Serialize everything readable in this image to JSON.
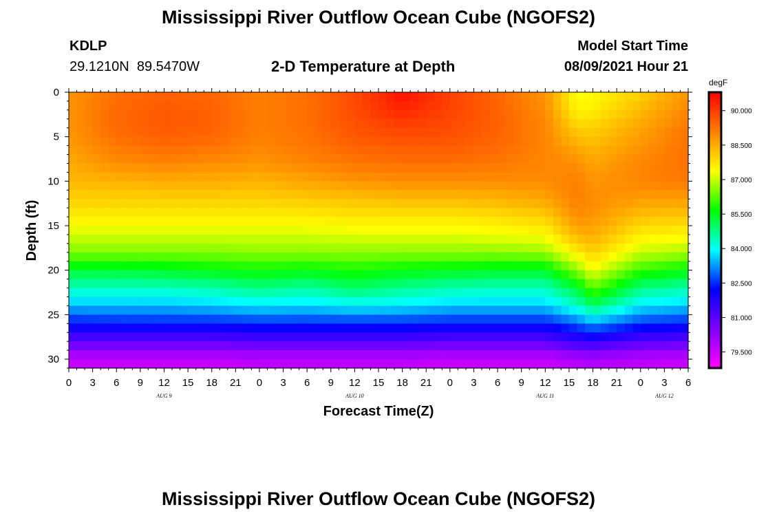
{
  "header": {
    "title": "Mississippi River Outflow Ocean Cube (NGOFS2)",
    "station_id": "KDLP",
    "station_coords": "29.1210N  89.5470W",
    "model_start_label": "Model Start Time",
    "model_start_value": "08/09/2021 Hour 21"
  },
  "footer": {
    "title": "Mississippi River Outflow Ocean Cube (NGOFS2)"
  },
  "chart_data": {
    "type": "heatmap",
    "title": "2-D Temperature at Depth",
    "xlabel": "Forecast Time(Z)",
    "ylabel": "Depth (ft)",
    "units": "degF",
    "x_range_hours": [
      0,
      78
    ],
    "x_tick_labels": [
      "0",
      "3",
      "6",
      "9",
      "12",
      "15",
      "18",
      "21",
      "0",
      "3",
      "6",
      "9",
      "12",
      "15",
      "18",
      "21",
      "0",
      "3",
      "6",
      "9",
      "12",
      "15",
      "18",
      "21",
      "0",
      "3",
      "6"
    ],
    "date_labels": [
      {
        "label": "AUG 9",
        "hour": 12
      },
      {
        "label": "AUG 10",
        "hour": 36
      },
      {
        "label": "AUG 11",
        "hour": 60
      },
      {
        "label": "AUG 12",
        "hour": 75
      }
    ],
    "y_range_ft": [
      0,
      31
    ],
    "y_ticks": [
      0,
      5,
      10,
      15,
      20,
      25,
      30
    ],
    "colorbar": {
      "range": [
        78.8,
        90.8
      ],
      "tick_values": [
        90.0,
        88.5,
        87.0,
        85.5,
        84.0,
        82.5,
        81.0,
        79.5
      ],
      "tick_labels": [
        "90.000",
        "88.500",
        "87.000",
        "85.500",
        "84.000",
        "82.500",
        "81.000",
        "79.500"
      ],
      "colors_low_to_high": [
        "#ff00ff",
        "#8000ff",
        "#0000ff",
        "#00ffff",
        "#00ff00",
        "#ffff00",
        "#ff8000",
        "#ff0000"
      ]
    },
    "depths_ft": [
      0,
      2,
      4,
      6,
      8,
      10,
      12,
      14,
      16,
      18,
      20,
      22,
      24,
      26,
      28,
      30
    ],
    "times_h": [
      0,
      6,
      12,
      18,
      24,
      30,
      36,
      42,
      48,
      54,
      60,
      64,
      66,
      72,
      78
    ],
    "temperature_degF": [
      [
        88.8,
        89.3,
        89.5,
        89.4,
        89.1,
        89.3,
        89.8,
        90.6,
        89.9,
        89.4,
        88.8,
        87.3,
        87.4,
        88.0,
        88.8
      ],
      [
        88.8,
        89.4,
        89.6,
        89.5,
        89.1,
        89.3,
        89.8,
        90.3,
        89.9,
        89.5,
        88.9,
        87.5,
        87.6,
        88.3,
        89.0
      ],
      [
        88.8,
        89.4,
        89.6,
        89.5,
        89.1,
        89.3,
        89.7,
        89.9,
        89.8,
        89.5,
        89.0,
        88.0,
        88.0,
        88.6,
        89.2
      ],
      [
        88.7,
        89.2,
        89.4,
        89.3,
        89.0,
        89.2,
        89.5,
        89.6,
        89.6,
        89.4,
        89.0,
        88.5,
        88.3,
        88.8,
        89.3
      ],
      [
        88.5,
        88.9,
        89.0,
        88.9,
        88.8,
        89.0,
        89.2,
        89.3,
        89.3,
        89.2,
        89.0,
        88.9,
        88.6,
        89.0,
        89.3
      ],
      [
        88.3,
        88.4,
        88.5,
        88.5,
        88.4,
        88.6,
        88.8,
        88.9,
        88.9,
        88.9,
        88.9,
        89.1,
        88.8,
        89.0,
        89.2
      ],
      [
        88.0,
        88.0,
        88.0,
        88.0,
        88.0,
        88.1,
        88.2,
        88.3,
        88.3,
        88.4,
        88.6,
        89.1,
        88.9,
        88.7,
        88.7
      ],
      [
        87.6,
        87.6,
        87.6,
        87.6,
        87.6,
        87.6,
        87.7,
        87.7,
        87.7,
        87.8,
        88.0,
        88.9,
        88.8,
        88.2,
        88.1
      ],
      [
        87.1,
        87.1,
        87.1,
        87.1,
        87.1,
        87.1,
        87.2,
        87.2,
        87.2,
        87.3,
        87.4,
        88.4,
        88.5,
        87.6,
        87.5
      ],
      [
        86.5,
        86.5,
        86.5,
        86.5,
        86.6,
        86.6,
        86.6,
        86.6,
        86.6,
        86.6,
        86.7,
        87.6,
        88.0,
        87.0,
        86.8
      ],
      [
        85.3,
        85.3,
        85.4,
        85.6,
        85.7,
        85.6,
        85.8,
        85.6,
        85.5,
        85.4,
        85.4,
        86.6,
        87.3,
        86.0,
        85.6
      ],
      [
        84.4,
        84.4,
        84.4,
        84.5,
        84.8,
        84.6,
        85.0,
        84.7,
        84.5,
        84.4,
        84.4,
        85.3,
        86.3,
        84.8,
        84.5
      ],
      [
        83.5,
        83.5,
        83.5,
        83.6,
        83.8,
        83.7,
        83.9,
        83.8,
        83.6,
        83.6,
        83.6,
        84.3,
        85.0,
        83.8,
        83.6
      ],
      [
        82.3,
        82.4,
        82.4,
        82.4,
        82.5,
        82.5,
        82.5,
        82.5,
        82.4,
        82.4,
        82.4,
        82.9,
        83.3,
        82.6,
        82.4
      ],
      [
        81.0,
        81.0,
        81.0,
        81.0,
        81.1,
        81.1,
        81.1,
        81.1,
        81.0,
        81.0,
        81.0,
        81.5,
        81.6,
        81.1,
        81.0
      ],
      [
        79.6,
        79.6,
        79.6,
        79.6,
        79.7,
        79.7,
        79.7,
        79.7,
        79.6,
        79.6,
        79.6,
        79.8,
        79.9,
        79.7,
        79.6
      ]
    ]
  }
}
